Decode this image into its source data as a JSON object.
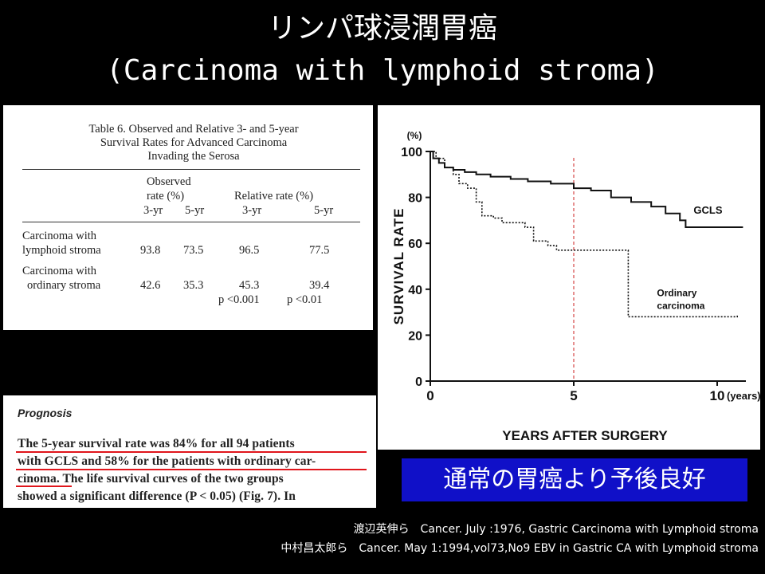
{
  "slide": {
    "title_line1": "リンパ球浸潤胃癌",
    "title_line2": "(Carcinoma with lymphoid stroma)",
    "banner_text": "通常の胃癌より予後良好",
    "references": [
      "渡辺英伸ら　Cancer. July :1976, Gastric Carcinoma with Lymphoid stroma",
      "中村昌太郎ら　Cancer. May 1:1994,vol73,No9 EBV in Gastric CA with Lymphoid stroma"
    ],
    "colors": {
      "background": "#000000",
      "banner": "#1010c8",
      "underline": "#e0151b",
      "cutoff_line": "#cc2222"
    }
  },
  "table": {
    "caption_lines": [
      "Table 6.  Observed  and  Relative  3-  and  5-year",
      "Survival Rates for Advanced Carcinoma",
      "Invading the Serosa"
    ],
    "header_observed": [
      "Observed",
      "rate (%)"
    ],
    "header_relative": "Relative rate (%)",
    "subheaders": [
      "3-yr",
      "5-yr",
      "3-yr",
      "5-yr"
    ],
    "rows": [
      {
        "label": [
          "Carcinoma with",
          "lymphoid stroma"
        ],
        "values": [
          "93.8",
          "73.5",
          "96.5",
          "77.5"
        ]
      },
      {
        "label": [
          "Carcinoma with",
          "ordinary stroma"
        ],
        "values": [
          "42.6",
          "35.3",
          "45.3",
          "39.4"
        ]
      }
    ],
    "p_values": [
      "p <0.001",
      "p <0.01"
    ]
  },
  "prognosis": {
    "heading": "Prognosis",
    "lines": [
      "The 5-year survival rate was 84% for all 94 patients",
      "with GCLS and 58% for the patients with ordinary car-",
      "cinoma. The life survival curves of the two groups",
      "showed a significant difference (P < 0.05) (Fig. 7). In"
    ]
  },
  "chart_data": {
    "type": "line",
    "ylabel": "SURVIVAL  RATE",
    "y_unit": "(%)",
    "xlabel": "YEARS  AFTER  SURGERY",
    "x_unit": "(years)",
    "ylim": [
      0,
      100
    ],
    "xlim": [
      0,
      11
    ],
    "yticks": [
      0,
      20,
      40,
      60,
      80,
      100
    ],
    "xticks": [
      0,
      5,
      10
    ],
    "reference_line_x": 5,
    "series": [
      {
        "name": "GCLS",
        "style": "solid",
        "points": [
          [
            0,
            100
          ],
          [
            0.1,
            97
          ],
          [
            0.3,
            95
          ],
          [
            0.5,
            93
          ],
          [
            0.8,
            92
          ],
          [
            1.2,
            91
          ],
          [
            1.6,
            90
          ],
          [
            2.1,
            89
          ],
          [
            2.8,
            88
          ],
          [
            3.4,
            87
          ],
          [
            4.2,
            86
          ],
          [
            5.0,
            84
          ],
          [
            5.6,
            83
          ],
          [
            6.3,
            80
          ],
          [
            7.0,
            78
          ],
          [
            7.7,
            76
          ],
          [
            8.2,
            73
          ],
          [
            8.7,
            70
          ],
          [
            8.9,
            67
          ],
          [
            10.9,
            67
          ]
        ]
      },
      {
        "name": "Ordinary carcinoma",
        "style": "dotted",
        "points": [
          [
            0,
            100
          ],
          [
            0.2,
            97
          ],
          [
            0.5,
            93
          ],
          [
            0.8,
            90
          ],
          [
            1.0,
            86
          ],
          [
            1.3,
            84
          ],
          [
            1.6,
            78
          ],
          [
            1.8,
            72
          ],
          [
            2.2,
            71
          ],
          [
            2.5,
            69
          ],
          [
            3.3,
            67
          ],
          [
            3.6,
            61
          ],
          [
            4.1,
            59
          ],
          [
            4.4,
            57
          ],
          [
            5.2,
            57
          ],
          [
            6.9,
            57
          ],
          [
            6.9,
            28
          ],
          [
            10.7,
            28
          ],
          [
            10.7,
            29
          ]
        ]
      }
    ]
  }
}
